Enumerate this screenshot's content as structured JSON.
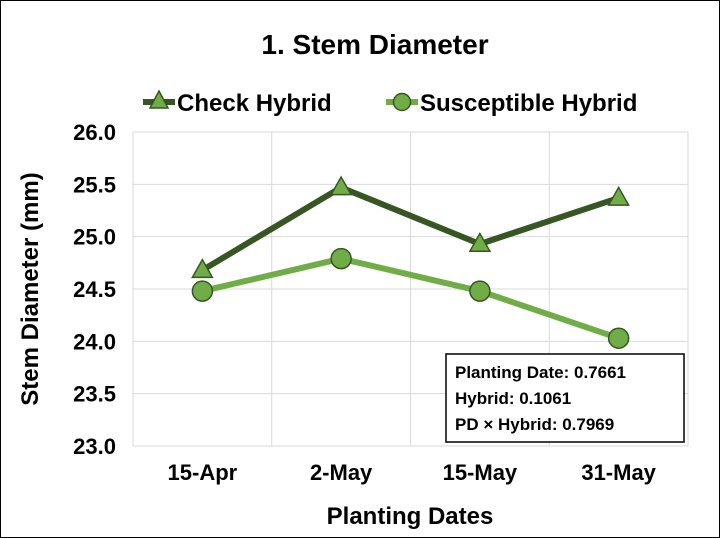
{
  "chart_data": {
    "type": "line",
    "title": "1. Stem Diameter",
    "xlabel": "Planting Dates",
    "ylabel": "Stem Diameter (mm)",
    "categories": [
      "15-Apr",
      "2-May",
      "15-May",
      "31-May"
    ],
    "ylim": [
      23.0,
      26.0
    ],
    "yticks": [
      "23.0",
      "23.5",
      "24.0",
      "24.5",
      "25.0",
      "25.5",
      "26.0"
    ],
    "grid": true,
    "legend_position": "top",
    "series": [
      {
        "name": "Check Hybrid",
        "marker": "triangle",
        "color": "#375623",
        "marker_color": "#70ad47",
        "values": [
          24.68,
          25.47,
          24.93,
          25.37
        ]
      },
      {
        "name": "Susceptible Hybrid",
        "marker": "circle",
        "color": "#70ad47",
        "marker_color": "#70ad47",
        "values": [
          24.48,
          24.79,
          24.48,
          24.03
        ]
      }
    ],
    "annotation": {
      "lines": [
        "Planting Date: 0.7661",
        "Hybrid: 0.1061",
        "PD × Hybrid: 0.7969"
      ]
    }
  }
}
